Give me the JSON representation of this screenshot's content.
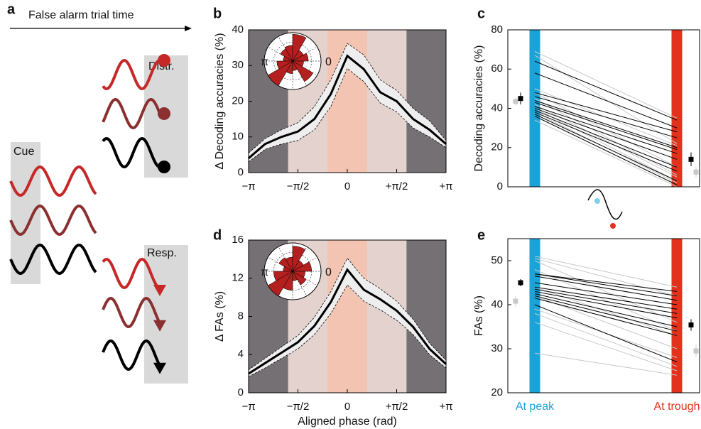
{
  "figure": {
    "panel_labels": [
      "a",
      "b",
      "c",
      "d",
      "e"
    ],
    "schematic": {
      "arrow_label": "False alarm trial time",
      "cue": "Cue",
      "distractor": "Distr.",
      "response": "Resp."
    }
  },
  "chart_data": [
    {
      "type": "line",
      "ylabel": "Δ Decoding accuracies (%)",
      "x": [
        -3.1416,
        -2.618,
        -2.0944,
        -1.5708,
        -1.0472,
        -0.5236,
        0,
        0.5236,
        1.0472,
        1.5708,
        2.0944,
        2.618,
        3.1416
      ],
      "values": [
        4,
        8,
        10,
        11.5,
        15,
        22,
        32.7,
        29,
        22.5,
        20,
        15,
        12,
        8
      ],
      "upper": [
        5.5,
        9.5,
        12,
        14,
        18.5,
        26,
        36.2,
        33,
        26,
        23,
        18,
        14.5,
        9
      ],
      "lower": [
        3,
        6.5,
        8,
        9,
        12,
        18.5,
        29.2,
        25.5,
        19.5,
        17,
        12.5,
        10,
        7
      ],
      "xlim": [
        -3.1416,
        3.1416
      ],
      "xticks": [
        {
          "value": -3.1416,
          "label": "−π"
        },
        {
          "value": -1.5708,
          "label": "−π/2"
        },
        0,
        {
          "value": 1.5708,
          "label": "+π/2"
        },
        {
          "value": 3.1416,
          "label": "+π"
        }
      ],
      "ylim": [
        0,
        40
      ],
      "yticks": [
        0,
        10,
        20,
        30,
        40
      ],
      "color": "#000000",
      "band_color": "#eeeeee",
      "phase_colors": [
        "#757074",
        "#e3d2cd",
        "#f3c4b2",
        "#e3d2cd",
        "#757074"
      ],
      "rose": [
        0.5,
        0.4,
        0.85,
        0.5,
        0.45,
        0.3,
        0.5,
        0.9,
        0.4,
        0.3,
        0.75,
        0.35
      ],
      "rose_color": "#b3201f",
      "rose_labels": [
        "π",
        "0"
      ]
    },
    {
      "type": "paired",
      "ylabel": "Decoding accuracies (%)",
      "ylim": [
        0,
        80
      ],
      "yticks": [
        0,
        20,
        40,
        60,
        80
      ],
      "category_colors": [
        "#1ba3d8",
        "#e2311d"
      ],
      "groups": [
        {
          "color": "#c8c8c8",
          "peak": [
            69,
            67,
            50,
            48,
            45,
            42,
            40,
            38,
            36,
            34
          ],
          "trough": [
            35,
            22,
            21,
            10,
            6,
            5,
            3,
            2,
            1,
            0
          ],
          "mean": [
            43.5,
            7.5
          ],
          "error": [
            2,
            2.5
          ]
        },
        {
          "color": "#000000",
          "peak": [
            64,
            58,
            48,
            46,
            44,
            43,
            41,
            40,
            39,
            38,
            37,
            36
          ],
          "trough": [
            34,
            30,
            28,
            25,
            20,
            19,
            17,
            14,
            10,
            8,
            3,
            1
          ],
          "mean": [
            45,
            14
          ],
          "error": [
            3,
            3.5
          ]
        }
      ]
    },
    {
      "type": "line",
      "ylabel": "Δ FAs (%)",
      "xlabel": "Aligned phase (rad)",
      "x": [
        -3.1416,
        -2.618,
        -2.0944,
        -1.5708,
        -1.0472,
        -0.5236,
        0,
        0.5236,
        1.0472,
        1.5708,
        2.0944,
        2.618,
        3.1416
      ],
      "values": [
        2,
        3.1,
        4.2,
        5.3,
        7,
        9.5,
        12.9,
        10.8,
        9.8,
        8.6,
        6.9,
        4.6,
        3
      ],
      "upper": [
        2.4,
        3.6,
        4.8,
        6,
        7.9,
        10.6,
        14.1,
        12,
        10.9,
        9.6,
        7.7,
        5.2,
        3.4
      ],
      "lower": [
        1.7,
        2.6,
        3.6,
        4.6,
        6.1,
        8.3,
        11.3,
        9.6,
        8.7,
        7.6,
        6.1,
        4,
        2.6
      ],
      "xlim": [
        -3.1416,
        3.1416
      ],
      "xticks": [
        {
          "value": -3.1416,
          "label": "−π"
        },
        {
          "value": -1.5708,
          "label": "−π/2"
        },
        0,
        {
          "value": 1.5708,
          "label": "+π/2"
        },
        {
          "value": 3.1416,
          "label": "+π"
        }
      ],
      "ylim": [
        0,
        16
      ],
      "yticks": [
        0,
        4,
        8,
        12,
        16
      ],
      "color": "#000000",
      "band_color": "#eeeeee",
      "phase_colors": [
        "#757074",
        "#e3d2cd",
        "#f3c4b2",
        "#e3d2cd",
        "#757074"
      ],
      "rose": [
        0.6,
        0.4,
        0.8,
        0.45,
        0.5,
        0.3,
        0.6,
        0.9,
        0.6,
        0.3,
        0.5,
        0.4
      ],
      "rose_color": "#b3201f",
      "rose_labels": [
        "π",
        "0"
      ]
    },
    {
      "type": "paired",
      "ylabel": "FAs (%)",
      "categories": [
        "At peak",
        "At trough"
      ],
      "ylim": [
        20,
        55
      ],
      "yticks": [
        20,
        30,
        40,
        50
      ],
      "category_colors": [
        "#1ba3d8",
        "#e2311d"
      ],
      "groups": [
        {
          "color": "#c8c8c8",
          "peak": [
            51,
            50.5,
            50,
            48,
            44,
            42,
            39,
            38,
            36,
            29
          ],
          "trough": [
            44,
            42,
            36,
            34,
            33,
            30,
            28,
            26,
            25,
            24
          ],
          "mean": [
            40.8,
            29.5
          ],
          "error": [
            1.2,
            1.3
          ]
        },
        {
          "color": "#000000",
          "peak": [
            47,
            47,
            46.5,
            45,
            44,
            43.5,
            43,
            42.5,
            42,
            41.5,
            40
          ],
          "trough": [
            43,
            42,
            41,
            40,
            39,
            38,
            37,
            35,
            34,
            33,
            27
          ],
          "mean": [
            45,
            35.4
          ],
          "error": [
            0.8,
            1.3
          ]
        }
      ]
    }
  ]
}
